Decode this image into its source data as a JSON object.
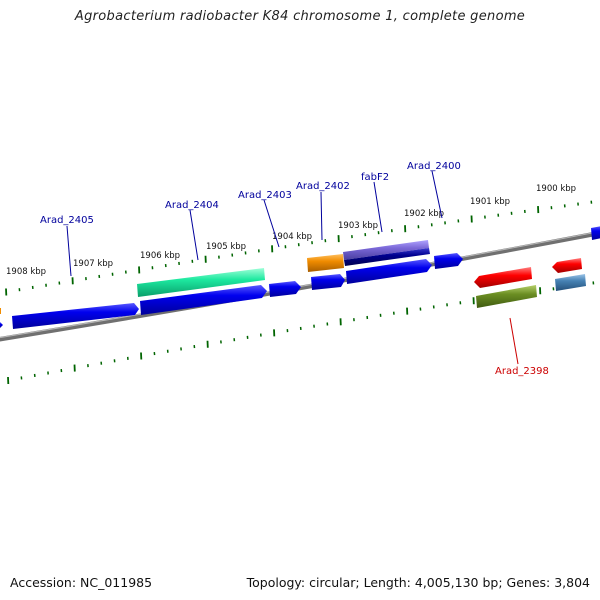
{
  "title": "Agrobacterium radiobacter K84 chromosome 1, complete genome",
  "footer": {
    "accession": "Accession: NC_011985",
    "summary": "Topology: circular; Length: 4,005,130 bp; Genes: 3,804"
  },
  "scale_labels": [
    "1908 kbp",
    "1907 kbp",
    "1906 kbp",
    "1905 kbp",
    "1904 kbp",
    "1903 kbp",
    "1902 kbp",
    "1901 kbp",
    "1900 kbp"
  ],
  "gene_labels": [
    {
      "text": "Arad_2405",
      "color": "#00009c"
    },
    {
      "text": "Arad_2404",
      "color": "#00009c"
    },
    {
      "text": "Arad_2403",
      "color": "#00009c"
    },
    {
      "text": "Arad_2402",
      "color": "#00009c"
    },
    {
      "text": "fabF2",
      "color": "#00009c"
    },
    {
      "text": "Arad_2400",
      "color": "#00009c"
    },
    {
      "text": "Arad_2398",
      "color": "#cc0000"
    }
  ],
  "colors": {
    "backbone": "#8a8a8a",
    "ticks": "#006400",
    "blue_gene": "#0000e0",
    "teal_gene": "#1de9a0",
    "orange_gene": "#f08c00",
    "purple_gene": "#7b68d8",
    "navy_gene": "#000080",
    "red_gene": "#ff0000",
    "olive_gene": "#6b8e23",
    "steel_gene": "#4682b4"
  }
}
